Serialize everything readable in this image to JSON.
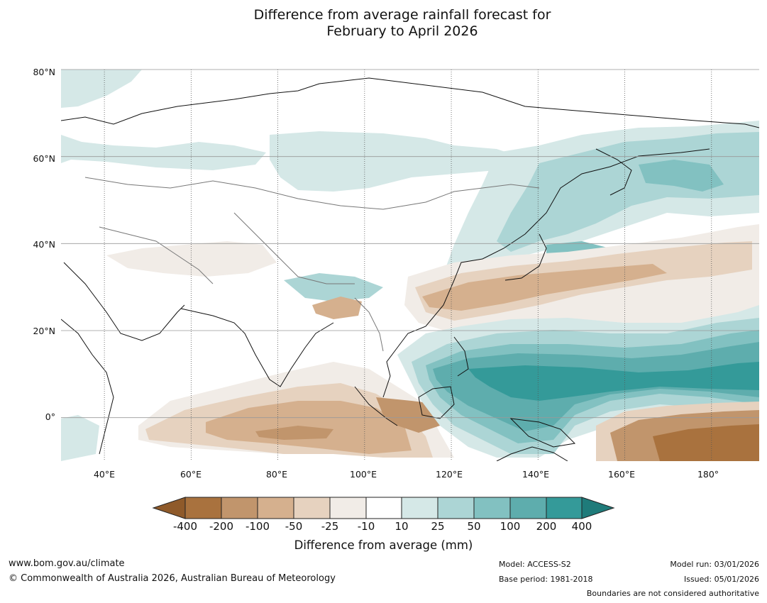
{
  "title": {
    "line1": "Difference from average rainfall forecast for",
    "line2": "February to April 2026"
  },
  "map": {
    "lat_labels": [
      "80°N",
      "60°N",
      "40°N",
      "20°N",
      "0°"
    ],
    "lon_labels": [
      "40°E",
      "60°E",
      "80°E",
      "100°E",
      "120°E",
      "140°E",
      "160°E",
      "180°"
    ],
    "lon_range_deg": [
      30,
      191
    ],
    "lat_range_deg": [
      -10,
      80
    ]
  },
  "colorbar": {
    "ticks": [
      "-400",
      "-200",
      "-100",
      "-50",
      "-25",
      "-10",
      "10",
      "25",
      "50",
      "100",
      "200",
      "400"
    ],
    "colors": {
      "lt400": "#8f5a2a",
      "b1": "#a9723e",
      "b2": "#c1956c",
      "b3": "#d5b08e",
      "b4": "#e6d2bf",
      "b5": "#f1ece7",
      "b6": "#ffffff",
      "b7": "#d5e8e7",
      "b8": "#acd5d5",
      "b9": "#82c1c1",
      "b10": "#5eadad",
      "b11": "#349a99",
      "gt400": "#1f7b7a"
    },
    "label": "Difference from average (mm)"
  },
  "footer": {
    "website": "www.bom.gov.au/climate",
    "copyright": "© Commonwealth of Australia 2026, Australian Bureau of Meteorology",
    "model": "Model: ACCESS-S2",
    "base_period": "Base period: 1981-2018",
    "model_run": "Model run: 03/01/2026",
    "issued": "Issued: 05/01/2026",
    "disclaimer": "Boundaries are not considered authoritative"
  }
}
